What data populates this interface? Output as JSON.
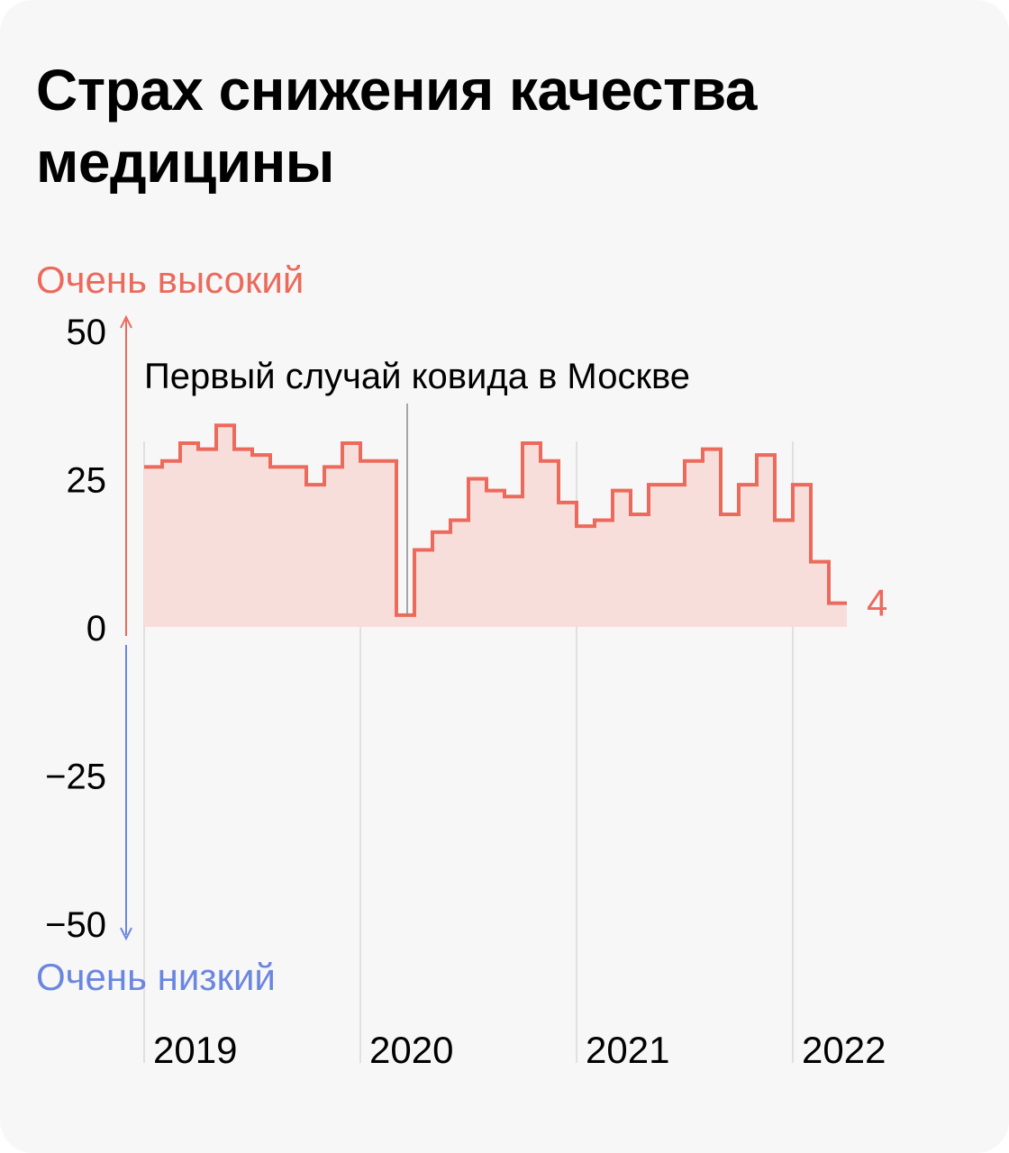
{
  "title": "Страх снижения качества медицины",
  "chart_data": {
    "type": "line",
    "step": true,
    "title": "Страх снижения качества медицины",
    "ylim": [
      -50,
      50
    ],
    "yticks": [
      50,
      25,
      0,
      -25,
      -50
    ],
    "y_high_label": "Очень высокий",
    "y_low_label": "Очень низкий",
    "x_year_labels": [
      "2019",
      "2020",
      "2021",
      "2022"
    ],
    "values": [
      27,
      28,
      31,
      30,
      34,
      30,
      29,
      27,
      27,
      24,
      27,
      31,
      28,
      28,
      2,
      13,
      16,
      18,
      25,
      23,
      22,
      31,
      28,
      21,
      17,
      18,
      23,
      19,
      24,
      24,
      28,
      30,
      19,
      24,
      29,
      18,
      24,
      11,
      4
    ],
    "last_value_label": "4",
    "annotation": {
      "text": "Первый случай ковида в Москве",
      "at_index": 14
    }
  },
  "colors": {
    "line": "#ec6a5c",
    "fill": "#f8dedb",
    "high_axis": "#ec6a5c",
    "low_axis": "#6b86e0",
    "gridline": "#d9d9d9",
    "annotation_line": "#8c8c8c",
    "text": "#000000"
  }
}
